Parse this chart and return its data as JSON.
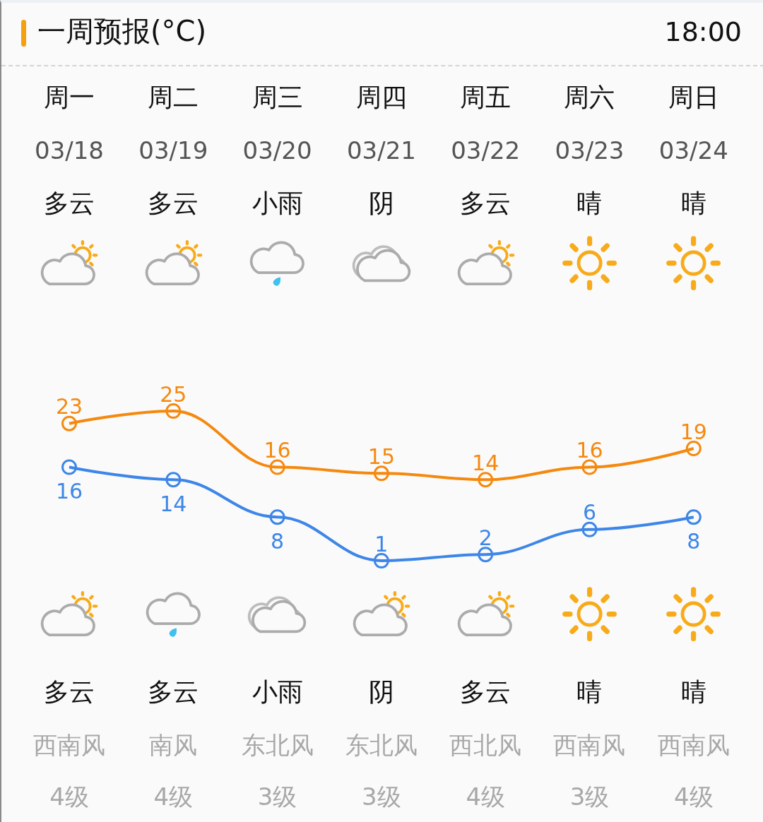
{
  "chart_data": {
    "type": "line",
    "title": "一周预报(°C)",
    "categories": [
      "周一",
      "周二",
      "周三",
      "周四",
      "周五",
      "周六",
      "周日"
    ],
    "series": [
      {
        "color": "#f5890f",
        "values": [
          23,
          25,
          16,
          15,
          14,
          16,
          19
        ]
      },
      {
        "color": "#3d86e8",
        "values": [
          16,
          14,
          8,
          1,
          2,
          6,
          8
        ]
      }
    ],
    "marker": "circle",
    "data_labels": true,
    "annotations": [
      "18:00",
      "03/18",
      "03/19",
      "03/20",
      "03/21",
      "03/22",
      "03/23",
      "03/24",
      "多云",
      "多云",
      "小雨",
      "阴",
      "多云",
      "晴",
      "晴",
      "多云",
      "多云",
      "小雨",
      "阴",
      "多云",
      "晴",
      "晴",
      "西南风",
      "南风",
      "东北风",
      "东北风",
      "西北风",
      "西南风",
      "西南风",
      "4级",
      "4级",
      "3级",
      "3级",
      "4级",
      "3级",
      "4级"
    ]
  }
}
